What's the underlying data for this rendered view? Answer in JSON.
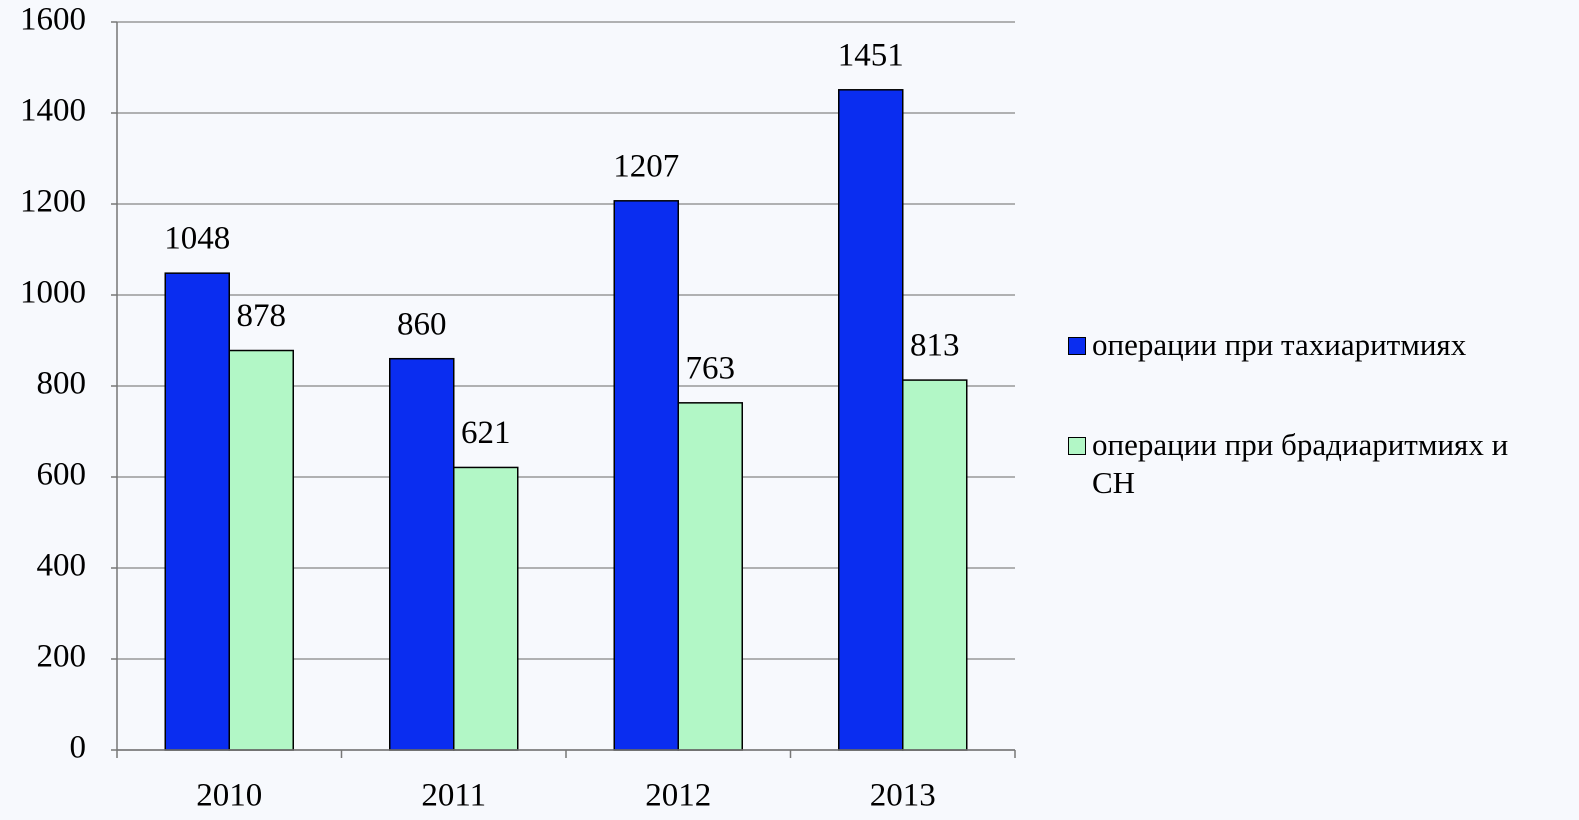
{
  "chart_data": {
    "type": "bar",
    "categories": [
      "2010",
      "2011",
      "2012",
      "2013"
    ],
    "series": [
      {
        "name": "операции при тахиаритмиях",
        "color": "#0a2df0",
        "values": [
          1048,
          860,
          1207,
          1451
        ]
      },
      {
        "name": "операции при брадиаритмиях и СН",
        "color": "#b2f7c6",
        "values": [
          878,
          621,
          763,
          813
        ]
      }
    ],
    "ylim": [
      0,
      1600
    ],
    "yticks": [
      0,
      200,
      400,
      600,
      800,
      1000,
      1200,
      1400,
      1600
    ],
    "grid": true,
    "legend": "right"
  }
}
